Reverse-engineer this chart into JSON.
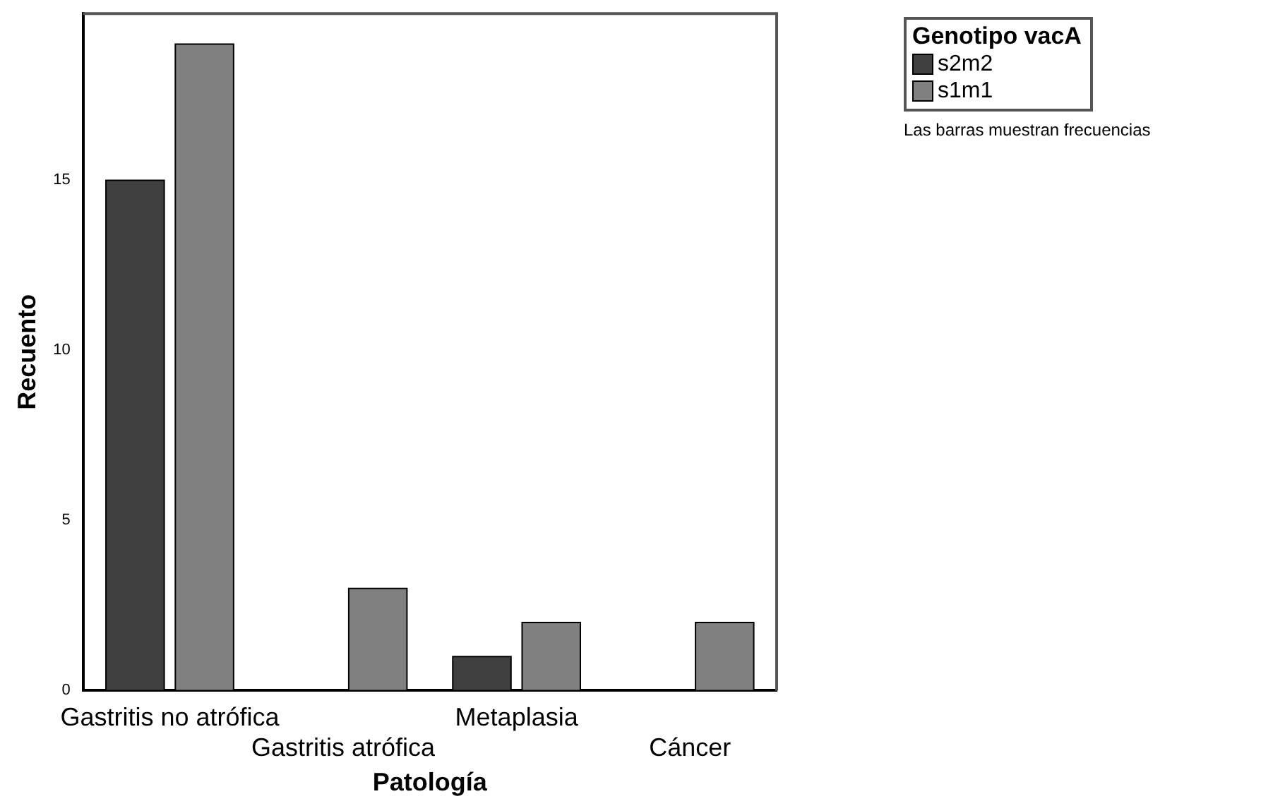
{
  "chart_data": {
    "type": "bar",
    "xlabel": "Patología",
    "ylabel": "Recuento",
    "legend_title": "Genotipo vacA",
    "categories": [
      "Gastritis no atrófica",
      "Gastritis atrófica",
      "Metaplasia",
      "Cáncer"
    ],
    "series": [
      {
        "name": "s2m2",
        "color": "#404040",
        "values": [
          15,
          0,
          1,
          0
        ]
      },
      {
        "name": "s1m1",
        "color": "#808080",
        "values": [
          19,
          3,
          2,
          2
        ]
      }
    ],
    "ylim": [
      0,
      19.9
    ],
    "yticks": [
      0,
      5,
      10,
      15
    ],
    "grid": false,
    "legend": "top right",
    "annotations": [
      "Las barras muestran frecuencias"
    ]
  }
}
